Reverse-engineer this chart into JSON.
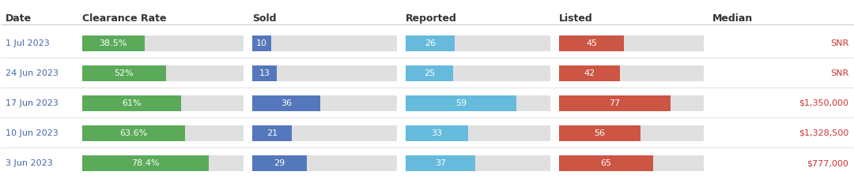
{
  "headers": [
    "Date",
    "Clearance Rate",
    "Sold",
    "Reported",
    "Listed",
    "Median"
  ],
  "rows": [
    {
      "date": "1 Jul 2023",
      "clearance_rate": 38.5,
      "clearance_label": "38.5%",
      "sold": 10,
      "reported": 26,
      "listed": 45,
      "median": "SNR"
    },
    {
      "date": "24 Jun 2023",
      "clearance_rate": 52.0,
      "clearance_label": "52%",
      "sold": 13,
      "reported": 25,
      "listed": 42,
      "median": "SNR"
    },
    {
      "date": "17 Jun 2023",
      "clearance_rate": 61.0,
      "clearance_label": "61%",
      "sold": 36,
      "reported": 59,
      "listed": 77,
      "median": "$1,350,000"
    },
    {
      "date": "10 Jun 2023",
      "clearance_rate": 63.6,
      "clearance_label": "63.6%",
      "sold": 21,
      "reported": 33,
      "listed": 56,
      "median": "$1,328,500"
    },
    {
      "date": "3 Jun 2023",
      "clearance_rate": 78.4,
      "clearance_label": "78.4%",
      "sold": 29,
      "reported": 37,
      "listed": 65,
      "median": "$777,000"
    }
  ],
  "max_clearance": 100,
  "max_sold": 77,
  "max_reported": 77,
  "max_listed": 100,
  "color_green": "#5aaa5a",
  "color_blue": "#5577bb",
  "color_lightblue": "#66bbdd",
  "color_red": "#cc5544",
  "color_gray": "#e0e0e0",
  "color_header_text": "#333333",
  "color_date_text": "#4466aa",
  "color_median_text": "#cc3333",
  "color_bar_text": "#ffffff",
  "header_fontsize": 9,
  "label_fontsize": 8,
  "date_fontsize": 8,
  "median_fontsize": 8,
  "col_starts": [
    0.0,
    0.09,
    0.29,
    0.47,
    0.65,
    0.83
  ],
  "col_ends": [
    0.09,
    0.29,
    0.47,
    0.65,
    0.83,
    1.0
  ]
}
